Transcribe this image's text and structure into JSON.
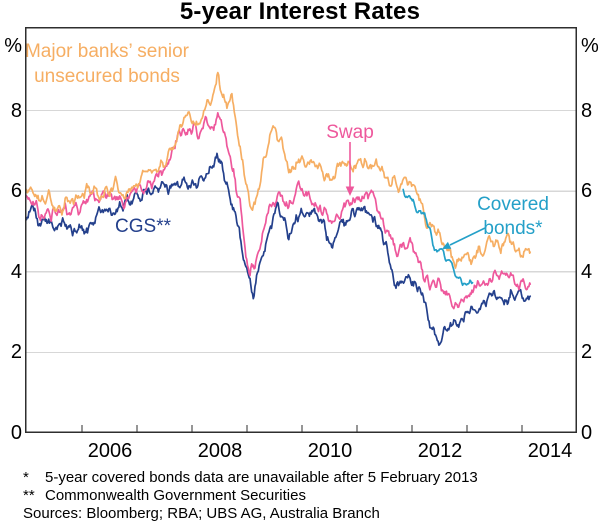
{
  "title": "5-year Interest Rates",
  "y_axis": {
    "unit": "%",
    "tick_labels": [
      "8",
      "6",
      "4",
      "2",
      "0"
    ]
  },
  "x_axis": {
    "tick_labels": [
      "2006",
      "2008",
      "2010",
      "2012",
      "2014"
    ]
  },
  "annotations": {
    "major_banks": {
      "line1": "Major banks’ senior",
      "line2": "unsecured bonds"
    },
    "swap": "Swap",
    "cgs": "CGS**",
    "covered": {
      "line1": "Covered",
      "line2": "bonds*"
    }
  },
  "footnotes": [
    {
      "marker": "*",
      "text": "5-year covered bonds data are unavailable after 5 February 2013"
    },
    {
      "marker": "**",
      "text": "Commonwealth Government Securities"
    }
  ],
  "sources": "Sources: Bloomberg; RBA; UBS AG, Australia Branch",
  "chart_data": {
    "type": "line",
    "title": "5-year Interest Rates",
    "ylabel": "%",
    "ylim": [
      0,
      10.07
    ],
    "xlim": [
      2004.96,
      2015.0
    ],
    "grid": true,
    "gridline_values": [
      8,
      6,
      4,
      2
    ],
    "x_tick_years": [
      2006,
      2007,
      2008,
      2009,
      2010,
      2011,
      2012,
      2013,
      2014
    ],
    "grid_color": "#d7d7d7",
    "axis_color": "#2e2e2e",
    "series": [
      {
        "id": "major-banks-senior-unsecured-bonds",
        "name": "Major banks' senior unsecured bonds",
        "color": "#F6AE63",
        "noise": 1,
        "points": [
          [
            2004.96,
            5.95
          ],
          [
            2005.1,
            6.05
          ],
          [
            2005.25,
            5.7
          ],
          [
            2005.4,
            5.85
          ],
          [
            2005.55,
            5.6
          ],
          [
            2005.7,
            5.8
          ],
          [
            2005.85,
            5.7
          ],
          [
            2006,
            5.85
          ],
          [
            2006.15,
            6.1
          ],
          [
            2006.3,
            5.95
          ],
          [
            2006.45,
            6.05
          ],
          [
            2006.6,
            6.15
          ],
          [
            2006.75,
            6.0
          ],
          [
            2006.9,
            6.15
          ],
          [
            2007.05,
            6.3
          ],
          [
            2007.2,
            6.5
          ],
          [
            2007.35,
            6.6
          ],
          [
            2007.5,
            6.8
          ],
          [
            2007.65,
            7.2
          ],
          [
            2007.8,
            7.85
          ],
          [
            2007.95,
            8.0
          ],
          [
            2008.1,
            7.75
          ],
          [
            2008.25,
            8.3
          ],
          [
            2008.38,
            8.6
          ],
          [
            2008.47,
            9.05
          ],
          [
            2008.55,
            8.5
          ],
          [
            2008.63,
            8.15
          ],
          [
            2008.72,
            8.5
          ],
          [
            2008.8,
            7.6
          ],
          [
            2008.9,
            6.9
          ],
          [
            2009,
            6.2
          ],
          [
            2009.1,
            5.65
          ],
          [
            2009.2,
            6.1
          ],
          [
            2009.3,
            6.8
          ],
          [
            2009.42,
            7.5
          ],
          [
            2009.5,
            7.6
          ],
          [
            2009.6,
            7.35
          ],
          [
            2009.7,
            6.9
          ],
          [
            2009.8,
            6.55
          ],
          [
            2009.9,
            6.85
          ],
          [
            2010,
            6.75
          ],
          [
            2010.15,
            6.7
          ],
          [
            2010.3,
            6.55
          ],
          [
            2010.45,
            6.35
          ],
          [
            2010.55,
            6.25
          ],
          [
            2010.7,
            6.55
          ],
          [
            2010.85,
            6.65
          ],
          [
            2011,
            6.7
          ],
          [
            2011.15,
            6.75
          ],
          [
            2011.3,
            6.6
          ],
          [
            2011.45,
            6.4
          ],
          [
            2011.6,
            6.0
          ],
          [
            2011.75,
            6.1
          ],
          [
            2011.9,
            6.2
          ],
          [
            2012,
            6.1
          ],
          [
            2012.1,
            5.95
          ],
          [
            2012.2,
            5.5
          ],
          [
            2012.3,
            5.05
          ],
          [
            2012.4,
            5.1
          ],
          [
            2012.5,
            4.95
          ],
          [
            2012.6,
            4.7
          ],
          [
            2012.7,
            4.5
          ],
          [
            2012.8,
            4.25
          ],
          [
            2012.9,
            4.3
          ],
          [
            2013,
            4.45
          ],
          [
            2013.1,
            4.5
          ],
          [
            2013.2,
            4.45
          ],
          [
            2013.3,
            4.55
          ],
          [
            2013.4,
            4.75
          ],
          [
            2013.5,
            4.6
          ],
          [
            2013.6,
            4.55
          ],
          [
            2013.7,
            4.65
          ],
          [
            2013.8,
            4.6
          ],
          [
            2013.9,
            4.5
          ],
          [
            2014,
            4.45
          ],
          [
            2014.15,
            4.35
          ]
        ]
      },
      {
        "id": "swap",
        "name": "Swap",
        "color": "#EE589C",
        "noise": 1,
        "points": [
          [
            2004.96,
            5.8
          ],
          [
            2005.1,
            5.9
          ],
          [
            2005.25,
            5.5
          ],
          [
            2005.4,
            5.65
          ],
          [
            2005.55,
            5.45
          ],
          [
            2005.7,
            5.6
          ],
          [
            2005.85,
            5.55
          ],
          [
            2006,
            5.65
          ],
          [
            2006.15,
            5.9
          ],
          [
            2006.3,
            5.75
          ],
          [
            2006.45,
            5.85
          ],
          [
            2006.6,
            5.95
          ],
          [
            2006.75,
            5.8
          ],
          [
            2006.9,
            5.95
          ],
          [
            2007.05,
            6.15
          ],
          [
            2007.2,
            6.35
          ],
          [
            2007.35,
            6.45
          ],
          [
            2007.5,
            6.65
          ],
          [
            2007.65,
            7.0
          ],
          [
            2007.8,
            7.5
          ],
          [
            2007.95,
            7.7
          ],
          [
            2008.1,
            7.4
          ],
          [
            2008.25,
            7.75
          ],
          [
            2008.4,
            7.85
          ],
          [
            2008.47,
            7.95
          ],
          [
            2008.55,
            7.4
          ],
          [
            2008.65,
            7.0
          ],
          [
            2008.75,
            6.5
          ],
          [
            2008.85,
            5.8
          ],
          [
            2008.95,
            4.8
          ],
          [
            2009.05,
            3.9
          ],
          [
            2009.15,
            4.2
          ],
          [
            2009.25,
            4.9
          ],
          [
            2009.35,
            5.45
          ],
          [
            2009.45,
            5.7
          ],
          [
            2009.55,
            5.85
          ],
          [
            2009.65,
            5.8
          ],
          [
            2009.75,
            5.7
          ],
          [
            2009.85,
            5.9
          ],
          [
            2009.95,
            6.0
          ],
          [
            2010.1,
            5.85
          ],
          [
            2010.25,
            5.75
          ],
          [
            2010.4,
            5.6
          ],
          [
            2010.55,
            5.3
          ],
          [
            2010.7,
            5.55
          ],
          [
            2010.85,
            5.75
          ],
          [
            2011,
            5.85
          ],
          [
            2011.15,
            5.9
          ],
          [
            2011.3,
            5.8
          ],
          [
            2011.45,
            5.3
          ],
          [
            2011.6,
            4.7
          ],
          [
            2011.75,
            4.4
          ],
          [
            2011.9,
            4.55
          ],
          [
            2012,
            4.5
          ],
          [
            2012.1,
            4.3
          ],
          [
            2012.2,
            3.95
          ],
          [
            2012.3,
            3.6
          ],
          [
            2012.4,
            3.75
          ],
          [
            2012.5,
            3.75
          ],
          [
            2012.6,
            3.6
          ],
          [
            2012.7,
            3.45
          ],
          [
            2012.8,
            3.3
          ],
          [
            2012.9,
            3.45
          ],
          [
            2013,
            3.55
          ],
          [
            2013.1,
            3.5
          ],
          [
            2013.2,
            3.6
          ],
          [
            2013.3,
            3.7
          ],
          [
            2013.4,
            3.85
          ],
          [
            2013.5,
            3.95
          ],
          [
            2013.6,
            3.8
          ],
          [
            2013.7,
            3.75
          ],
          [
            2013.8,
            3.85
          ],
          [
            2013.9,
            3.75
          ],
          [
            2014,
            3.65
          ],
          [
            2014.15,
            3.6
          ]
        ]
      },
      {
        "id": "cgs",
        "name": "CGS (Commonwealth Government Securities)",
        "color": "#24408C",
        "noise": 1,
        "points": [
          [
            2004.96,
            5.3
          ],
          [
            2005.1,
            5.6
          ],
          [
            2005.25,
            5.1
          ],
          [
            2005.4,
            5.2
          ],
          [
            2005.55,
            5.05
          ],
          [
            2005.7,
            5.25
          ],
          [
            2005.85,
            5.1
          ],
          [
            2006,
            5.15
          ],
          [
            2006.1,
            5.05
          ],
          [
            2006.25,
            5.35
          ],
          [
            2006.4,
            5.5
          ],
          [
            2006.55,
            5.4
          ],
          [
            2006.7,
            5.6
          ],
          [
            2006.85,
            5.5
          ],
          [
            2007,
            5.75
          ],
          [
            2007.15,
            5.9
          ],
          [
            2007.3,
            6.1
          ],
          [
            2007.45,
            6.2
          ],
          [
            2007.6,
            6.15
          ],
          [
            2007.75,
            6.1
          ],
          [
            2007.9,
            6.3
          ],
          [
            2008.05,
            6.2
          ],
          [
            2008.2,
            6.35
          ],
          [
            2008.35,
            6.5
          ],
          [
            2008.45,
            6.85
          ],
          [
            2008.55,
            6.45
          ],
          [
            2008.65,
            6.1
          ],
          [
            2008.75,
            5.7
          ],
          [
            2008.85,
            5.0
          ],
          [
            2008.95,
            4.3
          ],
          [
            2009.05,
            3.7
          ],
          [
            2009.12,
            3.45
          ],
          [
            2009.25,
            4.3
          ],
          [
            2009.35,
            4.9
          ],
          [
            2009.45,
            5.15
          ],
          [
            2009.55,
            5.45
          ],
          [
            2009.65,
            5.25
          ],
          [
            2009.75,
            5.0
          ],
          [
            2009.85,
            5.3
          ],
          [
            2009.95,
            5.5
          ],
          [
            2010.1,
            5.4
          ],
          [
            2010.25,
            5.55
          ],
          [
            2010.4,
            5.25
          ],
          [
            2010.55,
            4.75
          ],
          [
            2010.7,
            5.0
          ],
          [
            2010.85,
            5.25
          ],
          [
            2011,
            5.4
          ],
          [
            2011.15,
            5.5
          ],
          [
            2011.3,
            5.4
          ],
          [
            2011.45,
            4.9
          ],
          [
            2011.6,
            4.2
          ],
          [
            2011.75,
            3.6
          ],
          [
            2011.9,
            3.75
          ],
          [
            2012,
            3.8
          ],
          [
            2012.1,
            3.6
          ],
          [
            2012.2,
            3.45
          ],
          [
            2012.3,
            2.8
          ],
          [
            2012.4,
            2.45
          ],
          [
            2012.5,
            2.35
          ],
          [
            2012.6,
            2.8
          ],
          [
            2012.7,
            2.9
          ],
          [
            2012.8,
            2.65
          ],
          [
            2012.9,
            2.85
          ],
          [
            2013,
            3.05
          ],
          [
            2013.1,
            3.2
          ],
          [
            2013.2,
            3.05
          ],
          [
            2013.3,
            3.3
          ],
          [
            2013.4,
            3.5
          ],
          [
            2013.5,
            3.55
          ],
          [
            2013.6,
            3.4
          ],
          [
            2013.7,
            3.3
          ],
          [
            2013.8,
            3.5
          ],
          [
            2013.9,
            3.5
          ],
          [
            2014,
            3.35
          ],
          [
            2014.15,
            3.4
          ]
        ]
      },
      {
        "id": "covered-bonds",
        "name": "Covered bonds",
        "color": "#24A0C8",
        "noise": 0.6,
        "points": [
          [
            2011.84,
            5.95
          ],
          [
            2011.92,
            5.85
          ],
          [
            2012,
            5.8
          ],
          [
            2012.08,
            5.55
          ],
          [
            2012.16,
            5.35
          ],
          [
            2012.24,
            5.3
          ],
          [
            2012.32,
            5.0
          ],
          [
            2012.4,
            4.6
          ],
          [
            2012.48,
            4.45
          ],
          [
            2012.56,
            4.4
          ],
          [
            2012.64,
            4.3
          ],
          [
            2012.72,
            4.2
          ],
          [
            2012.8,
            3.95
          ],
          [
            2012.88,
            3.8
          ],
          [
            2012.96,
            3.7
          ],
          [
            2013.04,
            3.68
          ],
          [
            2013.1,
            3.7
          ]
        ]
      }
    ]
  }
}
